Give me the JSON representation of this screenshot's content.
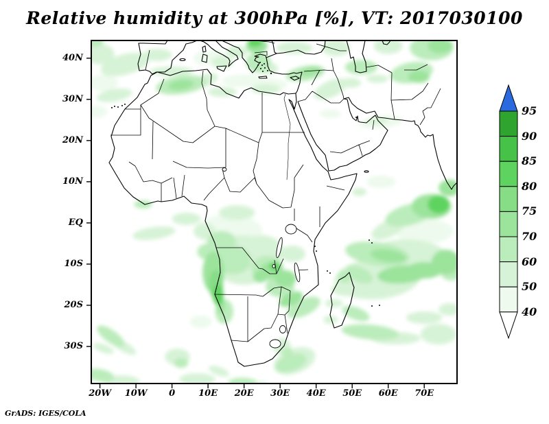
{
  "title": "Relative humidity at 300hPa [%], VT: 2017030100",
  "credit": "GrADS: IGES/COLA",
  "axes": {
    "y_labels": [
      "40N",
      "30N",
      "20N",
      "10N",
      "EQ",
      "10S",
      "20S",
      "30S"
    ],
    "x_labels": [
      "20W",
      "10W",
      "0",
      "10E",
      "20E",
      "30E",
      "40E",
      "50E",
      "60E",
      "70E"
    ]
  },
  "colorbar": {
    "tick_labels": [
      "95",
      "90",
      "85",
      "80",
      "75",
      "70",
      "60",
      "50",
      "40"
    ],
    "segment_colors_top_to_bottom": [
      "#2fa52f",
      "#45c247",
      "#5fd35f",
      "#86dd86",
      "#9ce39c",
      "#bbecbb",
      "#d7f3d7",
      "#edfaed"
    ],
    "over_color": "#2b6ade",
    "under_color": "#ffffff"
  },
  "chart_data": {
    "type": "heatmap",
    "title": "Relative humidity at 300hPa [%], VT: 2017030100",
    "variable": "Relative humidity",
    "level": "300hPa",
    "units": "%",
    "valid_time": "2017030100",
    "renderer_credit": "GrADS: IGES/COLA",
    "projection": "latlon",
    "lon_range": [
      -22.4,
      79.1
    ],
    "lat_range": [
      -39.0,
      44.3
    ],
    "x_ticks": [
      "20W",
      "10W",
      "0",
      "10E",
      "20E",
      "30E",
      "40E",
      "50E",
      "60E",
      "70E"
    ],
    "y_ticks": [
      "40N",
      "30N",
      "20N",
      "10N",
      "EQ",
      "10S",
      "20S",
      "30S"
    ],
    "contour_levels": [
      40,
      50,
      60,
      70,
      75,
      80,
      85,
      90,
      95
    ],
    "palette": {
      "40-50": "#edfaed",
      "50-60": "#d7f3d7",
      "60-70": "#bbecbb",
      "70-75": "#9ce39c",
      "75-80": "#86dd86",
      "80-85": "#5fd35f",
      "85-90": "#45c247",
      "90-95": "#2fa52f",
      ">95": "#2b6ade"
    },
    "shaded_features_columns": [
      "lon",
      "lat",
      "rx_deg",
      "ry_deg",
      "rotation_deg",
      "level_pct"
    ],
    "shaded_features": [
      [
        -13,
        38.5,
        7,
        2.5,
        -15,
        50
      ],
      [
        -16,
        31,
        5,
        1.5,
        -10,
        50
      ],
      [
        -19,
        34,
        4,
        2,
        0,
        40
      ],
      [
        -4,
        40.8,
        4,
        1.5,
        0,
        50
      ],
      [
        -21.5,
        44,
        2.5,
        1.2,
        0,
        60
      ],
      [
        -20,
        41,
        4,
        2.5,
        0,
        50
      ],
      [
        -21,
        27,
        3,
        1.5,
        0,
        40
      ],
      [
        2.5,
        33.5,
        7,
        2.2,
        -8,
        60
      ],
      [
        2.5,
        33.5,
        3.5,
        1.2,
        -8,
        70
      ],
      [
        9,
        34.5,
        4,
        1.5,
        -20,
        50
      ],
      [
        14,
        31.8,
        4,
        1.2,
        0,
        50
      ],
      [
        0,
        36.8,
        6,
        1.2,
        0,
        50
      ],
      [
        12,
        40,
        3,
        2,
        0,
        40
      ],
      [
        14,
        39,
        3,
        1.5,
        0,
        50
      ],
      [
        8.5,
        40,
        2.5,
        1.5,
        0,
        40
      ],
      [
        24,
        39,
        3.5,
        2.5,
        0,
        60
      ],
      [
        23.5,
        43,
        3,
        1.8,
        0,
        70
      ],
      [
        23,
        43.8,
        2,
        1,
        0,
        80
      ],
      [
        18,
        41.5,
        3,
        1.5,
        0,
        50
      ],
      [
        26.5,
        37.5,
        3,
        1.5,
        0,
        50
      ],
      [
        26,
        32.5,
        4,
        1.2,
        0,
        50
      ],
      [
        20,
        34.5,
        6,
        1.5,
        0,
        40
      ],
      [
        27,
        33.5,
        5,
        1.5,
        0,
        40
      ],
      [
        37,
        36.3,
        5.5,
        1.8,
        -10,
        60
      ],
      [
        38.5,
        36.8,
        3,
        1,
        -10,
        70
      ],
      [
        44,
        32.5,
        5,
        2,
        -25,
        50
      ],
      [
        34,
        42.5,
        5,
        1.5,
        0,
        50
      ],
      [
        45.5,
        42.5,
        4,
        2,
        0,
        50
      ],
      [
        52.5,
        37.8,
        4.5,
        1.8,
        0,
        60
      ],
      [
        49.5,
        34,
        3,
        1.2,
        0,
        50
      ],
      [
        57,
        35,
        3,
        1,
        0,
        50
      ],
      [
        66.5,
        36.5,
        6,
        2.5,
        -10,
        60
      ],
      [
        68.5,
        35.5,
        3,
        1.5,
        0,
        70
      ],
      [
        72,
        42.5,
        6,
        3,
        0,
        60
      ],
      [
        74.5,
        43,
        3.5,
        1.8,
        0,
        70
      ],
      [
        60,
        43,
        4,
        2,
        0,
        50
      ],
      [
        58,
        24.5,
        6,
        1.5,
        -5,
        40
      ],
      [
        57,
        24.8,
        3,
        0.8,
        -5,
        50
      ],
      [
        44,
        26.5,
        3,
        1,
        0,
        40
      ],
      [
        16,
        -2,
        9,
        4,
        0,
        40
      ],
      [
        20,
        -9,
        9,
        6,
        0,
        50
      ],
      [
        25,
        -7,
        6,
        4,
        0,
        50
      ],
      [
        17,
        -9,
        5,
        3.5,
        0,
        60
      ],
      [
        26.5,
        -11,
        4.5,
        3,
        0,
        60
      ],
      [
        27.5,
        -11.5,
        3,
        2,
        0,
        70
      ],
      [
        24.5,
        -13,
        2,
        1.5,
        0,
        70
      ],
      [
        28.5,
        -10.5,
        1.5,
        1,
        0,
        80
      ],
      [
        11.5,
        -12,
        3,
        5,
        0,
        70
      ],
      [
        12.2,
        -15,
        2,
        3.5,
        0,
        75
      ],
      [
        12.8,
        -17.5,
        1.5,
        2.5,
        0,
        80
      ],
      [
        13.5,
        -20,
        1.2,
        2,
        0,
        70
      ],
      [
        14.5,
        -21.5,
        2.5,
        3,
        0,
        60
      ],
      [
        10,
        -7,
        3,
        2,
        0,
        60
      ],
      [
        13.8,
        -4.5,
        4,
        2.5,
        0,
        60
      ],
      [
        9,
        -2,
        3,
        2,
        0,
        50
      ],
      [
        18,
        2.5,
        5,
        1.8,
        0,
        50
      ],
      [
        33.5,
        -7.5,
        3.5,
        2,
        0,
        50
      ],
      [
        30,
        -15.5,
        4,
        2.5,
        0,
        60
      ],
      [
        33,
        -18.5,
        3.5,
        1.5,
        -25,
        70
      ],
      [
        36.5,
        -20.5,
        5,
        2,
        -25,
        60
      ],
      [
        31.5,
        -13.5,
        3,
        2,
        0,
        70
      ],
      [
        -5,
        -2.5,
        6,
        1.5,
        -8,
        50
      ],
      [
        4,
        1,
        4,
        1.5,
        0,
        50
      ],
      [
        -8,
        4.5,
        2.5,
        1,
        0,
        60
      ],
      [
        8,
        -24,
        3,
        1.5,
        0,
        40
      ],
      [
        -17,
        -27.5,
        4.5,
        1.5,
        35,
        60
      ],
      [
        -13.5,
        -30,
        4,
        1.2,
        30,
        50
      ],
      [
        -19,
        -30.5,
        3,
        1,
        20,
        50
      ],
      [
        1.5,
        -32.5,
        3.5,
        2,
        0,
        50
      ],
      [
        2.5,
        -34,
        2,
        1.2,
        0,
        60
      ],
      [
        -20,
        -37,
        4,
        1.5,
        10,
        60
      ],
      [
        -14,
        -38.5,
        5,
        1.5,
        0,
        50
      ],
      [
        7,
        -38,
        5,
        1.5,
        0,
        50
      ],
      [
        13,
        -36,
        3,
        1,
        20,
        50
      ],
      [
        19.5,
        -38.8,
        4,
        1.2,
        0,
        60
      ],
      [
        24,
        -39.5,
        3,
        1,
        0,
        50
      ],
      [
        30.5,
        -30,
        2.5,
        2,
        0,
        50
      ],
      [
        32,
        -31.5,
        1.5,
        1.2,
        0,
        60
      ],
      [
        33,
        -34,
        4.5,
        2,
        -20,
        60
      ],
      [
        34,
        -33.5,
        6,
        3,
        -20,
        50
      ],
      [
        57,
        -7.5,
        9,
        2.8,
        8,
        60
      ],
      [
        60,
        -8,
        5,
        1.5,
        8,
        70
      ],
      [
        64,
        -12.5,
        7,
        2.2,
        -5,
        70
      ],
      [
        70,
        -11.5,
        5,
        2,
        0,
        70
      ],
      [
        76,
        -9.5,
        4,
        3,
        0,
        70
      ],
      [
        77.5,
        -12,
        3,
        2,
        0,
        60
      ],
      [
        52,
        -12.5,
        4,
        1.8,
        25,
        60
      ],
      [
        57,
        -13.5,
        12,
        5,
        -5,
        50
      ],
      [
        65,
        -9,
        12,
        5,
        0,
        50
      ],
      [
        47.5,
        -16.5,
        3.5,
        1.2,
        10,
        50
      ],
      [
        45,
        -19.5,
        2.5,
        1,
        0,
        50
      ],
      [
        51,
        -22,
        4,
        1.5,
        20,
        60
      ],
      [
        55,
        -26.5,
        8,
        1.8,
        5,
        60
      ],
      [
        62,
        -28,
        7,
        1.5,
        0,
        50
      ],
      [
        70,
        -23,
        5,
        1.5,
        0,
        50
      ],
      [
        74,
        -27,
        5,
        2.5,
        0,
        50
      ],
      [
        77,
        -21,
        3,
        1.5,
        0,
        50
      ],
      [
        44,
        -23.5,
        2,
        1,
        0,
        50
      ],
      [
        48,
        -13,
        2,
        1.5,
        0,
        60
      ],
      [
        74,
        4.5,
        3,
        2.2,
        0,
        80
      ],
      [
        72,
        4,
        5.5,
        3,
        0,
        70
      ],
      [
        66,
        2,
        7,
        2.5,
        -15,
        60
      ],
      [
        60,
        -1.5,
        5,
        2,
        -25,
        50
      ],
      [
        77,
        8.5,
        3,
        2,
        0,
        70
      ],
      [
        70,
        -2,
        8,
        3,
        0,
        40
      ],
      [
        52,
        7.5,
        2,
        1,
        0,
        50
      ],
      [
        58,
        10,
        4,
        1.5,
        0,
        40
      ]
    ]
  }
}
